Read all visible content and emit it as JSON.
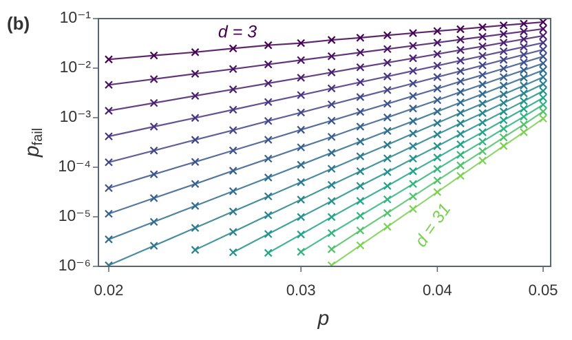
{
  "panel_label": "(b)",
  "chart_data": {
    "type": "line",
    "xlabel": "p",
    "ylabel": {
      "text": "p",
      "subscript": "fail"
    },
    "xscale": "log",
    "yscale": "log",
    "xlim": [
      0.01957,
      0.0508
    ],
    "ylim": [
      1e-06,
      0.1
    ],
    "xticks": [
      0.02,
      0.03,
      0.04,
      0.05
    ],
    "yticks": [
      {
        "value": 1e-06,
        "label": "10⁻⁶"
      },
      {
        "value": 1e-05,
        "label": "10⁻⁵"
      },
      {
        "value": 0.0001,
        "label": "10⁻⁴"
      },
      {
        "value": 0.001,
        "label": "10⁻³"
      },
      {
        "value": 0.01,
        "label": "10⁻²"
      },
      {
        "value": 0.1,
        "label": "10⁻¹"
      }
    ],
    "x": [
      0.02,
      0.022,
      0.024,
      0.026,
      0.028,
      0.03,
      0.032,
      0.034,
      0.036,
      0.038,
      0.04,
      0.042,
      0.044,
      0.046,
      0.048,
      0.05
    ],
    "annotations": [
      {
        "text": "d = 3",
        "color": "#440154"
      },
      {
        "text": "d = 31",
        "color": "#7ad151"
      }
    ],
    "series": [
      {
        "color": "#440154",
        "values": [
          0.015,
          0.018,
          0.021,
          0.025,
          0.029,
          0.032,
          0.037,
          0.041,
          0.046,
          0.051,
          0.056,
          0.061,
          0.067,
          0.073,
          0.079,
          0.085
        ]
      },
      {
        "color": "#471164",
        "values": [
          0.0046,
          0.006,
          0.0077,
          0.0096,
          0.0119,
          0.0145,
          0.0174,
          0.0207,
          0.0243,
          0.0283,
          0.0327,
          0.0377,
          0.043,
          0.0488,
          0.055,
          0.062
        ]
      },
      {
        "color": "#48206f",
        "values": [
          0.00138,
          0.00198,
          0.00276,
          0.00373,
          0.00495,
          0.0064,
          0.0082,
          0.0104,
          0.0129,
          0.0158,
          0.0192,
          0.0232,
          0.0275,
          0.0327,
          0.0384,
          0.045
        ]
      },
      {
        "color": "#463480",
        "values": [
          0.00042,
          0.00066,
          0.00099,
          0.00145,
          0.00207,
          0.00286,
          0.0039,
          0.0052,
          0.0068,
          0.0088,
          0.0112,
          0.0142,
          0.0177,
          0.0219,
          0.0268,
          0.0326
        ]
      },
      {
        "color": "#414487",
        "values": [
          0.000126,
          0.000217,
          0.000357,
          0.00056,
          0.00086,
          0.00127,
          0.00185,
          0.00261,
          0.00361,
          0.00492,
          0.0066,
          0.0087,
          0.0114,
          0.0147,
          0.0187,
          0.0237
        ]
      },
      {
        "color": "#3b528b",
        "values": [
          3.8e-05,
          7.2e-05,
          0.000128,
          0.000218,
          0.000358,
          0.00057,
          0.00087,
          0.00131,
          0.00191,
          0.00274,
          0.00386,
          0.0054,
          0.0073,
          0.0098,
          0.0131,
          0.0172
        ]
      },
      {
        "color": "#355f8d",
        "values": [
          1.15e-05,
          2.38e-05,
          4.6e-05,
          8.5e-05,
          0.000149,
          0.000252,
          0.00041,
          0.00066,
          0.00101,
          0.00153,
          0.00226,
          0.0033,
          0.00469,
          0.0066,
          0.0091,
          0.0125
        ]
      },
      {
        "color": "#2f6c8e",
        "values": [
          3.5e-06,
          7.9e-06,
          1.66e-05,
          3.29e-05,
          6.2e-05,
          0.000112,
          0.000196,
          0.00033,
          0.00054,
          0.00085,
          0.00133,
          0.00203,
          0.00301,
          0.00443,
          0.0064,
          0.0091
        ]
      },
      {
        "color": "#2a788e",
        "values": [
          1.05e-06,
          2.6e-06,
          5.97e-06,
          1.28e-05,
          2.59e-05,
          5e-05,
          9.3e-05,
          0.000166,
          0.000284,
          0.00048,
          0.00078,
          0.00125,
          0.00193,
          0.00296,
          0.00444,
          0.0066
        ]
      },
      {
        "color": "#25848e",
        "values": [
          null,
          null,
          2.15e-06,
          4.95e-06,
          1.08e-05,
          2.22e-05,
          4.4e-05,
          8.3e-05,
          0.000151,
          0.000266,
          0.00046,
          0.00077,
          0.00124,
          0.00199,
          0.0031,
          0.00478
        ]
      },
      {
        "color": "#21918c",
        "values": [
          null,
          null,
          null,
          1.92e-06,
          4.5e-06,
          9.9e-06,
          2.08e-05,
          4.2e-05,
          8e-05,
          0.000149,
          0.000267,
          0.00047,
          0.0008,
          0.00133,
          0.00216,
          0.00347
        ]
      },
      {
        "color": "#20a386",
        "values": [
          null,
          null,
          null,
          null,
          1.87e-06,
          4.4e-06,
          9.9e-06,
          2.09e-05,
          4.2e-05,
          8.3e-05,
          0.000157,
          0.00029,
          0.00051,
          0.00089,
          0.00151,
          0.00252
        ]
      },
      {
        "color": "#2fb47c",
        "values": [
          null,
          null,
          null,
          null,
          null,
          1.96e-06,
          4.7e-06,
          1.05e-05,
          2.24e-05,
          4.6e-05,
          9.2e-05,
          0.000178,
          0.000329,
          0.0006,
          0.00105,
          0.00183
        ]
      },
      {
        "color": "#4fc26a",
        "values": [
          null,
          null,
          null,
          null,
          null,
          null,
          2.22e-06,
          5.3e-06,
          1.19e-05,
          2.58e-05,
          5.4e-05,
          0.000109,
          0.000211,
          0.0004,
          0.00073,
          0.00133
        ]
      },
      {
        "color": "#7ad151",
        "values": [
          null,
          null,
          null,
          null,
          null,
          null,
          1.05e-06,
          2.65e-06,
          6.3e-06,
          1.44e-05,
          3.16e-05,
          6.7e-05,
          0.000136,
          0.000269,
          0.00051,
          0.00096
        ]
      }
    ]
  }
}
